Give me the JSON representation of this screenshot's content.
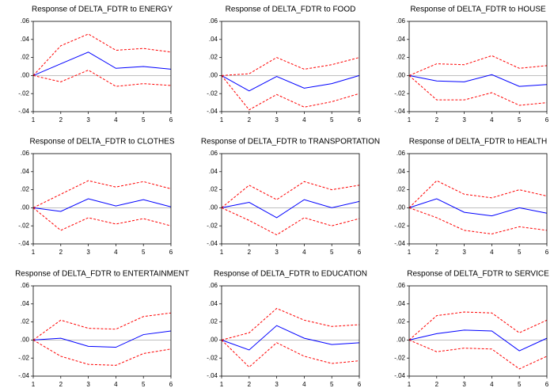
{
  "chart_data": [
    {
      "type": "line",
      "title": "Response of DELTA_FDTR to ENERGY",
      "x": [
        1,
        2,
        3,
        4,
        5,
        6
      ],
      "xlim": [
        1,
        6
      ],
      "xticks": [
        1,
        2,
        3,
        4,
        5,
        6
      ],
      "ylim": [
        -0.04,
        0.06
      ],
      "yticks": [
        {
          "value": -0.04,
          "label": "-.04"
        },
        {
          "value": -0.02,
          "label": "-.02"
        },
        {
          "value": 0,
          "label": ".00"
        },
        {
          "value": 0.02,
          "label": ".02"
        },
        {
          "value": 0.04,
          "label": ".04"
        },
        {
          "value": 0.06,
          "label": ".06"
        }
      ],
      "series": [
        {
          "color": "#0000ff",
          "dashed": false,
          "values": [
            0,
            0.013,
            0.026,
            0.008,
            0.01,
            0.007
          ]
        },
        {
          "color": "#ff0000",
          "dashed": true,
          "values": [
            0,
            0.033,
            0.046,
            0.028,
            0.03,
            0.026
          ]
        },
        {
          "color": "#ff0000",
          "dashed": true,
          "values": [
            0,
            -0.007,
            0.006,
            -0.012,
            -0.009,
            -0.011
          ]
        }
      ]
    },
    {
      "type": "line",
      "title": "Response of DELTA_FDTR to FOOD",
      "x": [
        1,
        2,
        3,
        4,
        5,
        6
      ],
      "xlim": [
        1,
        6
      ],
      "xticks": [
        1,
        2,
        3,
        4,
        5,
        6
      ],
      "ylim": [
        -0.04,
        0.06
      ],
      "yticks": [
        {
          "value": -0.04,
          "label": "-.04"
        },
        {
          "value": -0.02,
          "label": "-.02"
        },
        {
          "value": 0,
          "label": ".00"
        },
        {
          "value": 0.02,
          "label": ".02"
        },
        {
          "value": 0.04,
          "label": ".04"
        },
        {
          "value": 0.06,
          "label": ".06"
        }
      ],
      "series": [
        {
          "color": "#0000ff",
          "dashed": false,
          "values": [
            0,
            -0.017,
            -0.001,
            -0.014,
            -0.009,
            0
          ]
        },
        {
          "color": "#ff0000",
          "dashed": true,
          "values": [
            0,
            0.002,
            0.02,
            0.007,
            0.012,
            0.02
          ]
        },
        {
          "color": "#ff0000",
          "dashed": true,
          "values": [
            0,
            -0.038,
            -0.021,
            -0.035,
            -0.029,
            -0.02
          ]
        }
      ]
    },
    {
      "type": "line",
      "title": "Response of DELTA_FDTR to HOUSE",
      "x": [
        1,
        2,
        3,
        4,
        5,
        6
      ],
      "xlim": [
        1,
        6
      ],
      "xticks": [
        1,
        2,
        3,
        4,
        5,
        6
      ],
      "ylim": [
        -0.04,
        0.06
      ],
      "yticks": [
        {
          "value": -0.04,
          "label": "-.04"
        },
        {
          "value": -0.02,
          "label": "-.02"
        },
        {
          "value": 0,
          "label": ".00"
        },
        {
          "value": 0.02,
          "label": ".02"
        },
        {
          "value": 0.04,
          "label": ".04"
        },
        {
          "value": 0.06,
          "label": ".06"
        }
      ],
      "series": [
        {
          "color": "#0000ff",
          "dashed": false,
          "values": [
            0,
            -0.006,
            -0.007,
            0.001,
            -0.012,
            -0.01
          ]
        },
        {
          "color": "#ff0000",
          "dashed": true,
          "values": [
            0,
            0.013,
            0.012,
            0.022,
            0.008,
            0.011
          ]
        },
        {
          "color": "#ff0000",
          "dashed": true,
          "values": [
            0,
            -0.027,
            -0.027,
            -0.019,
            -0.033,
            -0.03
          ]
        }
      ]
    },
    {
      "type": "line",
      "title": "Response of DELTA_FDTR to CLOTHES",
      "x": [
        1,
        2,
        3,
        4,
        5,
        6
      ],
      "xlim": [
        1,
        6
      ],
      "xticks": [
        1,
        2,
        3,
        4,
        5,
        6
      ],
      "ylim": [
        -0.04,
        0.06
      ],
      "yticks": [
        {
          "value": -0.04,
          "label": "-.04"
        },
        {
          "value": -0.02,
          "label": "-.02"
        },
        {
          "value": 0,
          "label": ".00"
        },
        {
          "value": 0.02,
          "label": ".02"
        },
        {
          "value": 0.04,
          "label": ".04"
        },
        {
          "value": 0.06,
          "label": ".06"
        }
      ],
      "series": [
        {
          "color": "#0000ff",
          "dashed": false,
          "values": [
            0,
            -0.004,
            0.01,
            0.002,
            0.009,
            0.001
          ]
        },
        {
          "color": "#ff0000",
          "dashed": true,
          "values": [
            0,
            0.015,
            0.03,
            0.023,
            0.029,
            0.021
          ]
        },
        {
          "color": "#ff0000",
          "dashed": true,
          "values": [
            0,
            -0.025,
            -0.011,
            -0.018,
            -0.012,
            -0.02
          ]
        }
      ]
    },
    {
      "type": "line",
      "title": "Response of DELTA_FDTR to TRANSPORTATION",
      "x": [
        1,
        2,
        3,
        4,
        5,
        6
      ],
      "xlim": [
        1,
        6
      ],
      "xticks": [
        1,
        2,
        3,
        4,
        5,
        6
      ],
      "ylim": [
        -0.04,
        0.06
      ],
      "yticks": [
        {
          "value": -0.04,
          "label": "-.04"
        },
        {
          "value": -0.02,
          "label": "-.02"
        },
        {
          "value": 0,
          "label": ".00"
        },
        {
          "value": 0.02,
          "label": ".02"
        },
        {
          "value": 0.04,
          "label": ".04"
        },
        {
          "value": 0.06,
          "label": ".06"
        }
      ],
      "series": [
        {
          "color": "#0000ff",
          "dashed": false,
          "values": [
            0,
            0.006,
            -0.011,
            0.009,
            0,
            0.007
          ]
        },
        {
          "color": "#ff0000",
          "dashed": true,
          "values": [
            0,
            0.025,
            0.009,
            0.029,
            0.02,
            0.025
          ]
        },
        {
          "color": "#ff0000",
          "dashed": true,
          "values": [
            0,
            -0.014,
            -0.03,
            -0.011,
            -0.02,
            -0.012
          ]
        }
      ]
    },
    {
      "type": "line",
      "title": "Response of DELTA_FDTR to HEALTH",
      "x": [
        1,
        2,
        3,
        4,
        5,
        6
      ],
      "xlim": [
        1,
        6
      ],
      "xticks": [
        1,
        2,
        3,
        4,
        5,
        6
      ],
      "ylim": [
        -0.04,
        0.06
      ],
      "yticks": [
        {
          "value": -0.04,
          "label": "-.04"
        },
        {
          "value": -0.02,
          "label": "-.02"
        },
        {
          "value": 0,
          "label": ".00"
        },
        {
          "value": 0.02,
          "label": ".02"
        },
        {
          "value": 0.04,
          "label": ".04"
        },
        {
          "value": 0.06,
          "label": ".06"
        }
      ],
      "series": [
        {
          "color": "#0000ff",
          "dashed": false,
          "values": [
            0,
            0.01,
            -0.005,
            -0.009,
            0,
            -0.006
          ]
        },
        {
          "color": "#ff0000",
          "dashed": true,
          "values": [
            0,
            0.03,
            0.015,
            0.011,
            0.02,
            0.013
          ]
        },
        {
          "color": "#ff0000",
          "dashed": true,
          "values": [
            0,
            -0.011,
            -0.025,
            -0.029,
            -0.021,
            -0.025
          ]
        }
      ]
    },
    {
      "type": "line",
      "title": "Response of DELTA_FDTR to ENTERTAINMENT",
      "x": [
        1,
        2,
        3,
        4,
        5,
        6
      ],
      "xlim": [
        1,
        6
      ],
      "xticks": [
        1,
        2,
        3,
        4,
        5,
        6
      ],
      "ylim": [
        -0.04,
        0.06
      ],
      "yticks": [
        {
          "value": -0.04,
          "label": "-.04"
        },
        {
          "value": -0.02,
          "label": "-.02"
        },
        {
          "value": 0,
          "label": ".00"
        },
        {
          "value": 0.02,
          "label": ".02"
        },
        {
          "value": 0.04,
          "label": ".04"
        },
        {
          "value": 0.06,
          "label": ".06"
        }
      ],
      "series": [
        {
          "color": "#0000ff",
          "dashed": false,
          "values": [
            0,
            0.002,
            -0.007,
            -0.008,
            0.006,
            0.01
          ]
        },
        {
          "color": "#ff0000",
          "dashed": true,
          "values": [
            0,
            0.022,
            0.013,
            0.012,
            0.026,
            0.03
          ]
        },
        {
          "color": "#ff0000",
          "dashed": true,
          "values": [
            0,
            -0.018,
            -0.027,
            -0.028,
            -0.015,
            -0.01
          ]
        }
      ]
    },
    {
      "type": "line",
      "title": "Response of DELTA_FDTR to EDUCATION",
      "x": [
        1,
        2,
        3,
        4,
        5,
        6
      ],
      "xlim": [
        1,
        6
      ],
      "xticks": [
        1,
        2,
        3,
        4,
        5,
        6
      ],
      "ylim": [
        -0.04,
        0.06
      ],
      "yticks": [
        {
          "value": -0.04,
          "label": "-.04"
        },
        {
          "value": -0.02,
          "label": "-.02"
        },
        {
          "value": 0,
          "label": ".00"
        },
        {
          "value": 0.02,
          "label": ".02"
        },
        {
          "value": 0.04,
          "label": ".04"
        },
        {
          "value": 0.06,
          "label": ".06"
        }
      ],
      "series": [
        {
          "color": "#0000ff",
          "dashed": false,
          "values": [
            0,
            -0.011,
            0.016,
            0.002,
            -0.005,
            -0.003
          ]
        },
        {
          "color": "#ff0000",
          "dashed": true,
          "values": [
            0,
            0.008,
            0.035,
            0.022,
            0.015,
            0.017
          ]
        },
        {
          "color": "#ff0000",
          "dashed": true,
          "values": [
            0,
            -0.03,
            -0.003,
            -0.018,
            -0.026,
            -0.023
          ]
        }
      ]
    },
    {
      "type": "line",
      "title": "Response of DELTA_FDTR to SERVICE",
      "x": [
        1,
        2,
        3,
        4,
        5,
        6
      ],
      "xlim": [
        1,
        6
      ],
      "xticks": [
        1,
        2,
        3,
        4,
        5,
        6
      ],
      "ylim": [
        -0.04,
        0.06
      ],
      "yticks": [
        {
          "value": -0.04,
          "label": "-.04"
        },
        {
          "value": -0.02,
          "label": "-.02"
        },
        {
          "value": 0,
          "label": ".00"
        },
        {
          "value": 0.02,
          "label": ".02"
        },
        {
          "value": 0.04,
          "label": ".04"
        },
        {
          "value": 0.06,
          "label": ".06"
        }
      ],
      "series": [
        {
          "color": "#0000ff",
          "dashed": false,
          "values": [
            0,
            0.007,
            0.011,
            0.01,
            -0.012,
            0.002
          ]
        },
        {
          "color": "#ff0000",
          "dashed": true,
          "values": [
            0,
            0.027,
            0.031,
            0.03,
            0.008,
            0.022
          ]
        },
        {
          "color": "#ff0000",
          "dashed": true,
          "values": [
            0,
            -0.013,
            -0.009,
            -0.01,
            -0.032,
            -0.018
          ]
        }
      ]
    }
  ]
}
